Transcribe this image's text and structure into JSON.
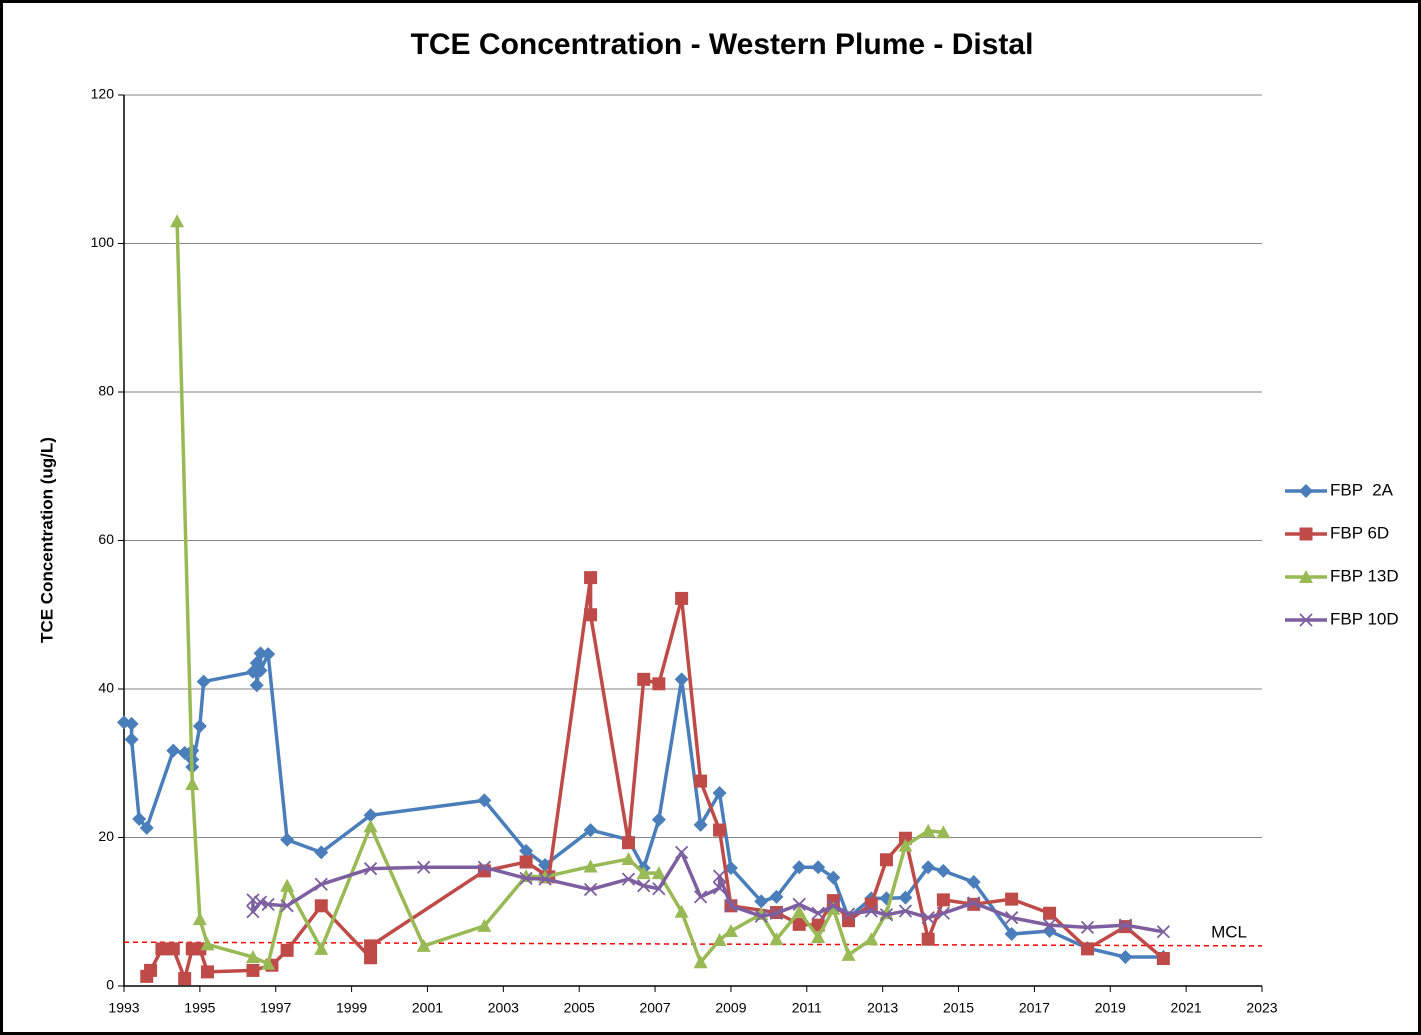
{
  "chart_data": {
    "type": "line",
    "title": "TCE Concentration - Western Plume - Distal",
    "y_label": "TCE Concentration (ug/L)",
    "xlim": [
      1993,
      2023
    ],
    "xticks": [
      1993,
      1995,
      1997,
      1999,
      2001,
      2003,
      2005,
      2007,
      2009,
      2011,
      2013,
      2015,
      2017,
      2019,
      2021,
      2023
    ],
    "ylim": [
      0,
      120
    ],
    "yticks": [
      0,
      20,
      40,
      60,
      80,
      100,
      120
    ],
    "grid": true,
    "legend": "right",
    "reference_line": {
      "label": "MCL",
      "color": "#ff0000",
      "x": [
        1993,
        2023
      ],
      "values": [
        5.9,
        5.4
      ]
    },
    "series": [
      {
        "name": "FBP  2A",
        "color": "#4a7ebb",
        "marker": "diamond",
        "x": [
          1993.0,
          1993.2,
          1993.2,
          1993.4,
          1993.6,
          1994.3,
          1994.6,
          1994.8,
          1994.8,
          1994.8,
          1995.0,
          1995.1,
          1996.4,
          1996.5,
          1996.5,
          1996.6,
          1996.6,
          1996.8,
          1997.3,
          1998.2,
          1999.5,
          2002.5,
          2003.6,
          2004.1,
          2005.3,
          2006.3,
          2006.7,
          2007.1,
          2007.7,
          2008.2,
          2008.7,
          2009.0,
          2009.8,
          2010.2,
          2010.8,
          2011.3,
          2011.7,
          2012.1,
          2012.7,
          2013.1,
          2013.6,
          2014.2,
          2014.6,
          2015.4,
          2016.4,
          2017.4,
          2018.4,
          2019.4,
          2020.4
        ],
        "values": [
          35.5,
          35.3,
          33.2,
          22.5,
          21.3,
          31.7,
          31.4,
          31.7,
          30.5,
          29.5,
          35,
          41,
          42.3,
          43.5,
          40.5,
          44.8,
          42.5,
          44.7,
          19.7,
          18,
          23,
          25,
          18.2,
          16.3,
          21,
          19.7,
          15.9,
          22.4,
          41.3,
          21.7,
          26,
          15.9,
          11.4,
          12,
          16,
          16,
          14.6,
          9.2,
          11.8,
          11.8,
          11.9,
          16,
          15.5,
          14,
          7,
          7.4,
          5.1,
          3.9,
          3.9
        ]
      },
      {
        "name": "FBP 6D",
        "color": "#be4b48",
        "marker": "square",
        "x": [
          1993.6,
          1993.7,
          1994.0,
          1994.3,
          1994.6,
          1994.8,
          1995.0,
          1995.2,
          1996.4,
          1996.9,
          1997.3,
          1998.2,
          1999.5,
          1999.5,
          2002.5,
          2003.6,
          2004.2,
          2005.3,
          2005.3,
          2006.3,
          2006.7,
          2007.1,
          2007.7,
          2008.2,
          2008.7,
          2009.0,
          2010.2,
          2010.8,
          2011.3,
          2011.7,
          2012.1,
          2012.7,
          2013.1,
          2013.6,
          2014.2,
          2014.6,
          2015.4,
          2016.4,
          2017.4,
          2018.4,
          2019.4,
          2020.4
        ],
        "values": [
          1.3,
          2.1,
          5,
          5,
          1,
          5,
          5,
          1.9,
          2.1,
          2.8,
          4.8,
          10.8,
          3.8,
          5.4,
          15.5,
          16.7,
          14.7,
          55,
          50,
          19.3,
          41.3,
          40.7,
          52.2,
          27.6,
          21,
          10.8,
          9.9,
          8.3,
          8.2,
          11.5,
          8.8,
          11,
          17,
          19.9,
          6.3,
          11.6,
          11,
          11.7,
          9.8,
          5,
          8,
          3.7
        ]
      },
      {
        "name": "FBP 13D",
        "color": "#98b954",
        "marker": "triangle",
        "x": [
          1994.4,
          1994.8,
          1995.0,
          1995.2,
          1996.4,
          1996.8,
          1997.3,
          1998.2,
          1999.5,
          2000.9,
          2002.5,
          2003.6,
          2004.1,
          2005.3,
          2006.3,
          2006.7,
          2007.1,
          2007.7,
          2008.2,
          2008.7,
          2009.0,
          2009.8,
          2010.2,
          2010.8,
          2011.3,
          2011.7,
          2012.1,
          2012.7,
          2013.1,
          2013.6,
          2014.2,
          2014.6
        ],
        "values": [
          103,
          27.2,
          9,
          5.6,
          3.9,
          3,
          13.5,
          5,
          21.5,
          5.4,
          8.1,
          14.8,
          14.7,
          16.1,
          17.1,
          15.2,
          15.2,
          10,
          3.2,
          6.2,
          7.4,
          9.7,
          6.3,
          10,
          6.6,
          10.4,
          4.2,
          6.3,
          9.8,
          18.9,
          20.9,
          20.7
        ]
      },
      {
        "name": "FBP 10D",
        "color": "#7d5fa0",
        "marker": "x",
        "x": [
          1996.4,
          1996.4,
          1996.6,
          1996.8,
          1997.3,
          1998.2,
          1999.5,
          2000.9,
          2002.5,
          2003.6,
          2004.1,
          2005.3,
          2006.3,
          2006.7,
          2007.1,
          2007.7,
          2008.2,
          2008.7,
          2008.7,
          2009.0,
          2009.8,
          2010.2,
          2010.8,
          2011.3,
          2011.7,
          2012.1,
          2012.7,
          2013.1,
          2013.6,
          2014.2,
          2014.6,
          2015.4,
          2016.4,
          2017.4,
          2018.4,
          2019.4,
          2020.4
        ],
        "values": [
          11.6,
          10,
          11.3,
          11,
          10.8,
          13.7,
          15.8,
          16,
          16,
          14.5,
          14.4,
          13,
          14.4,
          13.5,
          13.1,
          18,
          12,
          13.2,
          14.8,
          10.8,
          9.4,
          9.8,
          11,
          9.8,
          10.8,
          9.7,
          10.1,
          9.6,
          10.1,
          9.2,
          9.8,
          11.2,
          9.2,
          8.2,
          7.9,
          8.2,
          7.3
        ]
      }
    ]
  }
}
